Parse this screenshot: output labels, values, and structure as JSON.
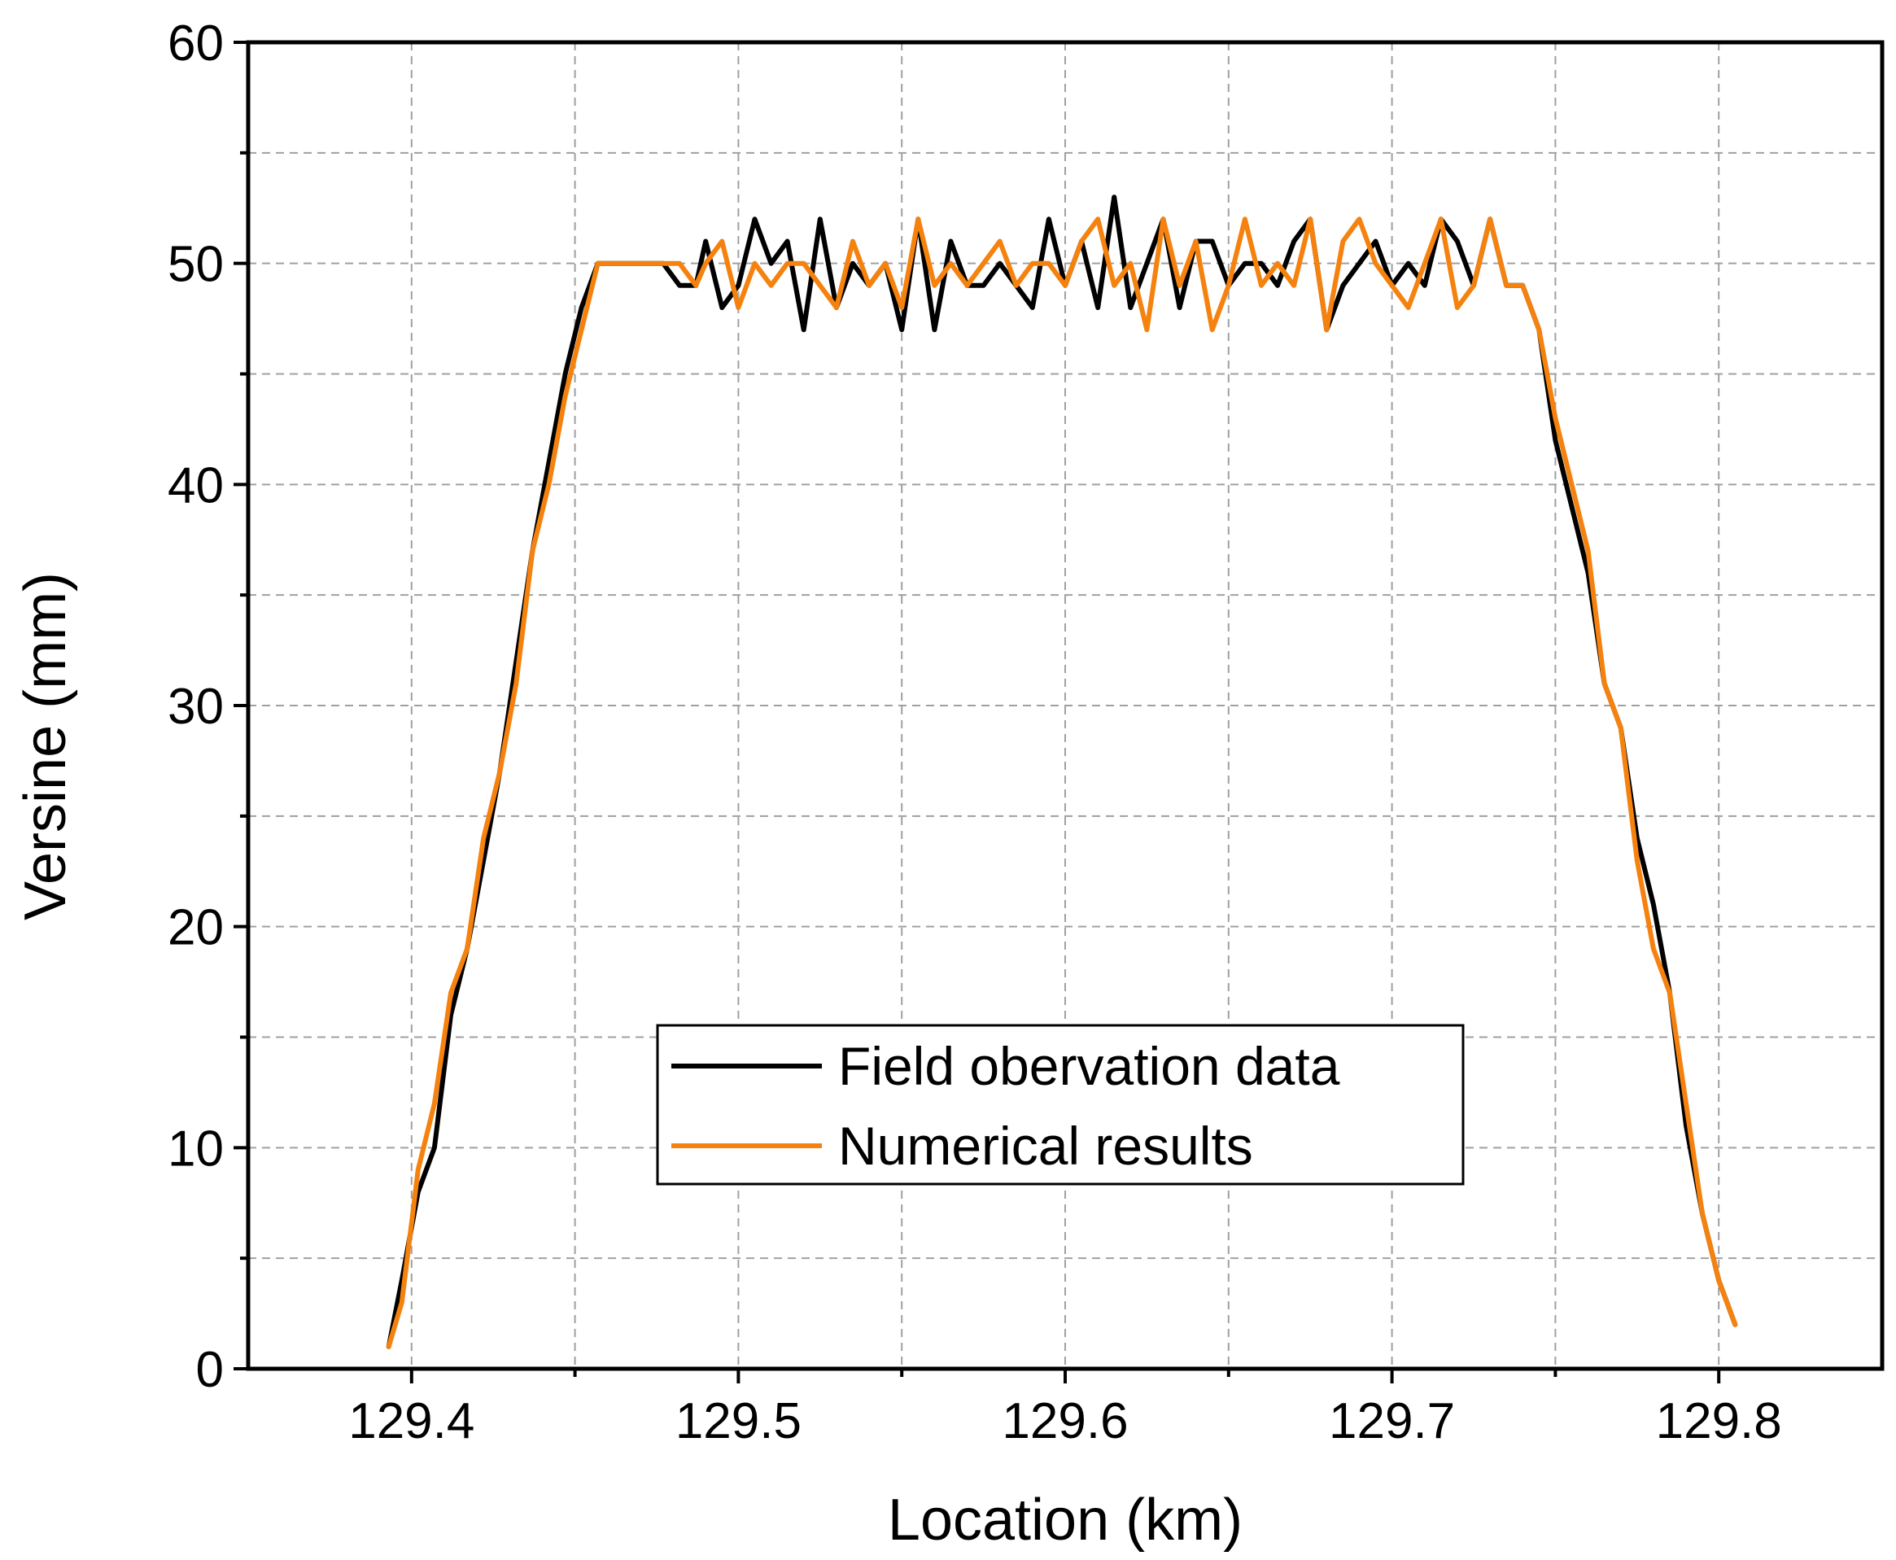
{
  "chart_data": {
    "type": "line",
    "title": "",
    "xlabel": "Location (km)",
    "ylabel": "Versine (mm)",
    "xlim": [
      129.35,
      129.85
    ],
    "ylim": [
      0,
      60
    ],
    "xticks": [
      129.4,
      129.5,
      129.6,
      129.7,
      129.8
    ],
    "xtick_labels": [
      "129.4",
      "129.5",
      "129.6",
      "129.7",
      "129.8"
    ],
    "yticks": [
      0,
      10,
      20,
      30,
      40,
      50,
      60
    ],
    "ytick_labels": [
      "0",
      "10",
      "20",
      "30",
      "40",
      "50",
      "60"
    ],
    "grid": true,
    "legend_position": "lower-center",
    "series": [
      {
        "name": "Field obervation data",
        "color": "#000000",
        "x": [
          129.393,
          129.397,
          129.402,
          129.407,
          129.412,
          129.417,
          129.422,
          129.427,
          129.432,
          129.437,
          129.442,
          129.447,
          129.452,
          129.457,
          129.46,
          129.467,
          129.472,
          129.477,
          129.482,
          129.487,
          129.49,
          129.495,
          129.5,
          129.505,
          129.51,
          129.515,
          129.52,
          129.525,
          129.53,
          129.535,
          129.54,
          129.545,
          129.55,
          129.555,
          129.56,
          129.565,
          129.57,
          129.575,
          129.58,
          129.585,
          129.59,
          129.595,
          129.6,
          129.605,
          129.61,
          129.615,
          129.62,
          129.625,
          129.63,
          129.635,
          129.64,
          129.645,
          129.65,
          129.655,
          129.66,
          129.665,
          129.67,
          129.675,
          129.68,
          129.685,
          129.69,
          129.695,
          129.7,
          129.705,
          129.71,
          129.715,
          129.72,
          129.725,
          129.73,
          129.735,
          129.74,
          129.745,
          129.75,
          129.755,
          129.76,
          129.765,
          129.77,
          129.775,
          129.78,
          129.785,
          129.79,
          129.795,
          129.8,
          129.805
        ],
        "y": [
          1,
          4,
          8,
          10,
          16,
          19,
          23,
          27,
          32,
          37,
          41,
          45,
          48,
          50,
          50,
          50,
          50,
          50,
          49,
          49,
          51,
          48,
          49,
          52,
          50,
          51,
          47,
          52,
          48,
          50,
          49,
          50,
          47,
          52,
          47,
          51,
          49,
          49,
          50,
          49,
          48,
          52,
          49,
          51,
          48,
          53,
          48,
          50,
          52,
          48,
          51,
          51,
          49,
          50,
          50,
          49,
          51,
          52,
          47,
          49,
          50,
          51,
          49,
          50,
          49,
          52,
          51,
          49,
          52,
          49,
          49,
          47,
          42,
          39,
          36,
          31,
          29,
          24,
          21,
          17,
          11,
          7,
          4,
          2
        ]
      },
      {
        "name": "Numerical results",
        "color": "#f5820f",
        "x": [
          129.393,
          129.397,
          129.402,
          129.407,
          129.412,
          129.417,
          129.422,
          129.427,
          129.432,
          129.437,
          129.442,
          129.447,
          129.452,
          129.457,
          129.46,
          129.467,
          129.472,
          129.477,
          129.482,
          129.487,
          129.49,
          129.495,
          129.5,
          129.505,
          129.51,
          129.515,
          129.52,
          129.525,
          129.53,
          129.535,
          129.54,
          129.545,
          129.55,
          129.555,
          129.56,
          129.565,
          129.57,
          129.575,
          129.58,
          129.585,
          129.59,
          129.595,
          129.6,
          129.605,
          129.61,
          129.615,
          129.62,
          129.625,
          129.63,
          129.635,
          129.64,
          129.645,
          129.65,
          129.655,
          129.66,
          129.665,
          129.67,
          129.675,
          129.68,
          129.685,
          129.69,
          129.695,
          129.7,
          129.705,
          129.71,
          129.715,
          129.72,
          129.725,
          129.73,
          129.735,
          129.74,
          129.745,
          129.75,
          129.755,
          129.76,
          129.765,
          129.77,
          129.775,
          129.78,
          129.785,
          129.79,
          129.795,
          129.8,
          129.805
        ],
        "y": [
          1,
          3,
          9,
          12,
          17,
          19,
          24,
          27,
          31,
          37,
          40,
          44,
          47,
          50,
          50,
          50,
          50,
          50,
          50,
          49,
          50,
          51,
          48,
          50,
          49,
          50,
          50,
          49,
          48,
          51,
          49,
          50,
          48,
          52,
          49,
          50,
          49,
          50,
          51,
          49,
          50,
          50,
          49,
          51,
          52,
          49,
          50,
          47,
          52,
          49,
          51,
          47,
          49,
          52,
          49,
          50,
          49,
          52,
          47,
          51,
          52,
          50,
          49,
          48,
          50,
          52,
          48,
          49,
          52,
          49,
          49,
          47,
          43,
          40,
          37,
          31,
          29,
          23,
          19,
          17,
          12,
          7,
          4,
          2
        ]
      }
    ]
  }
}
